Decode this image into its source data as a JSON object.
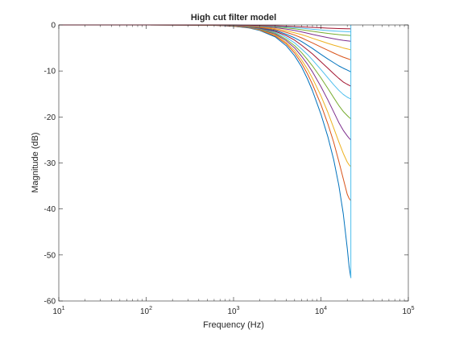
{
  "chart_data": {
    "type": "line",
    "title": "High cut filter model",
    "xlabel": "Frequency (Hz)",
    "ylabel": "Magnitude (dB)",
    "xscale": "log",
    "xlim": [
      10,
      100000
    ],
    "ylim": [
      -60,
      0
    ],
    "xticks": [
      10,
      100,
      1000,
      10000,
      100000
    ],
    "xtick_labels": [
      {
        "base": "10",
        "exp": "1"
      },
      {
        "base": "10",
        "exp": "2"
      },
      {
        "base": "10",
        "exp": "3"
      },
      {
        "base": "10",
        "exp": "4"
      },
      {
        "base": "10",
        "exp": "5"
      }
    ],
    "yticks": [
      0,
      -10,
      -20,
      -30,
      -40,
      -50,
      -60
    ],
    "ytick_labels": [
      "0",
      "-10",
      "-20",
      "-30",
      "-40",
      "-50",
      "-60"
    ],
    "grid": false,
    "legend": "none",
    "x": [
      10,
      100,
      300,
      500,
      700,
      1000,
      1500,
      2000,
      3000,
      4000,
      5000,
      6000,
      7000,
      8000,
      10000,
      12000,
      14000,
      16000,
      18000,
      20000,
      21000,
      22000
    ],
    "series": [
      {
        "color": "#0072BD",
        "values": [
          0,
          0,
          -0.02,
          -0.05,
          -0.12,
          -0.3,
          -0.65,
          -1.2,
          -2.6,
          -4.5,
          -6.7,
          -9.1,
          -11.7,
          -14.3,
          -19.4,
          -24.3,
          -29.3,
          -34.8,
          -41.0,
          -48.5,
          -52.5,
          -55.0
        ]
      },
      {
        "color": "#D95319",
        "values": [
          0,
          0,
          -0.02,
          -0.05,
          -0.12,
          -0.28,
          -0.6,
          -1.1,
          -2.4,
          -4.1,
          -6.1,
          -8.3,
          -10.6,
          -12.9,
          -17.3,
          -21.5,
          -25.5,
          -29.6,
          -33.4,
          -36.8,
          -37.7,
          -38.2
        ]
      },
      {
        "color": "#EDB120",
        "values": [
          0,
          0,
          -0.02,
          -0.05,
          -0.11,
          -0.26,
          -0.56,
          -1.05,
          -2.2,
          -3.8,
          -5.6,
          -7.6,
          -9.6,
          -11.6,
          -15.4,
          -19.0,
          -22.4,
          -25.4,
          -27.9,
          -29.8,
          -30.4,
          -30.8
        ]
      },
      {
        "color": "#7E2F8E",
        "values": [
          0,
          0,
          -0.02,
          -0.04,
          -0.1,
          -0.24,
          -0.52,
          -0.95,
          -2.0,
          -3.4,
          -5.0,
          -6.8,
          -8.5,
          -10.2,
          -13.4,
          -16.3,
          -18.9,
          -21.2,
          -22.9,
          -24.1,
          -24.6,
          -25.0
        ]
      },
      {
        "color": "#77AC30",
        "values": [
          0,
          0,
          -0.02,
          -0.04,
          -0.09,
          -0.22,
          -0.48,
          -0.88,
          -1.8,
          -3.1,
          -4.5,
          -6.0,
          -7.5,
          -8.9,
          -11.5,
          -13.8,
          -15.8,
          -17.5,
          -18.8,
          -19.7,
          -20.1,
          -20.4
        ]
      },
      {
        "color": "#4DBEEE",
        "values": [
          0,
          0,
          -0.02,
          -0.04,
          -0.08,
          -0.2,
          -0.44,
          -0.8,
          -1.6,
          -2.7,
          -3.9,
          -5.2,
          -6.4,
          -7.6,
          -9.7,
          -11.5,
          -13.0,
          -14.2,
          -15.1,
          -15.7,
          -15.9,
          -16.1
        ]
      },
      {
        "color": "#A2142F",
        "values": [
          0,
          0,
          -0.02,
          -0.04,
          -0.08,
          -0.18,
          -0.4,
          -0.72,
          -1.4,
          -2.3,
          -3.3,
          -4.4,
          -5.4,
          -6.3,
          -8.0,
          -9.4,
          -10.6,
          -11.6,
          -12.4,
          -12.9,
          -13.1,
          -13.3
        ]
      },
      {
        "color": "#0072BD",
        "values": [
          0,
          0,
          -0.01,
          -0.03,
          -0.07,
          -0.16,
          -0.36,
          -0.64,
          -1.2,
          -2.0,
          -2.8,
          -3.6,
          -4.4,
          -5.1,
          -6.4,
          -7.4,
          -8.2,
          -8.9,
          -9.4,
          -9.8,
          -10.0,
          -10.2
        ]
      },
      {
        "color": "#D95319",
        "values": [
          0,
          0,
          -0.01,
          -0.03,
          -0.06,
          -0.14,
          -0.3,
          -0.54,
          -1.0,
          -1.6,
          -2.2,
          -2.8,
          -3.4,
          -3.9,
          -4.8,
          -5.5,
          -6.1,
          -6.6,
          -7.0,
          -7.3,
          -7.45,
          -7.6
        ]
      },
      {
        "color": "#EDB120",
        "values": [
          0,
          0,
          -0.01,
          -0.02,
          -0.05,
          -0.11,
          -0.24,
          -0.44,
          -0.8,
          -1.25,
          -1.7,
          -2.1,
          -2.5,
          -2.9,
          -3.5,
          -4.0,
          -4.4,
          -4.7,
          -5.0,
          -5.2,
          -5.3,
          -5.4
        ]
      },
      {
        "color": "#7E2F8E",
        "values": [
          0,
          0,
          -0.01,
          -0.02,
          -0.04,
          -0.09,
          -0.18,
          -0.33,
          -0.6,
          -0.9,
          -1.2,
          -1.5,
          -1.8,
          -2.05,
          -2.45,
          -2.75,
          -3.0,
          -3.2,
          -3.35,
          -3.45,
          -3.5,
          -3.55
        ]
      },
      {
        "color": "#77AC30",
        "values": [
          0,
          0,
          -0.01,
          -0.02,
          -0.03,
          -0.07,
          -0.14,
          -0.24,
          -0.42,
          -0.63,
          -0.84,
          -1.04,
          -1.22,
          -1.38,
          -1.64,
          -1.84,
          -1.98,
          -2.1,
          -2.18,
          -2.24,
          -2.27,
          -2.3
        ]
      },
      {
        "color": "#4DBEEE",
        "values": [
          0,
          0,
          -0.01,
          -0.01,
          -0.02,
          -0.05,
          -0.1,
          -0.17,
          -0.3,
          -0.44,
          -0.58,
          -0.71,
          -0.83,
          -0.93,
          -1.1,
          -1.22,
          -1.31,
          -1.38,
          -1.43,
          -1.47,
          -1.49,
          -1.5
        ]
      },
      {
        "color": "#A2142F",
        "values": [
          0,
          0,
          0,
          -0.01,
          -0.01,
          -0.03,
          -0.06,
          -0.1,
          -0.18,
          -0.26,
          -0.34,
          -0.41,
          -0.47,
          -0.53,
          -0.62,
          -0.69,
          -0.74,
          -0.78,
          -0.81,
          -0.83,
          -0.84,
          -0.85
        ]
      }
    ]
  }
}
